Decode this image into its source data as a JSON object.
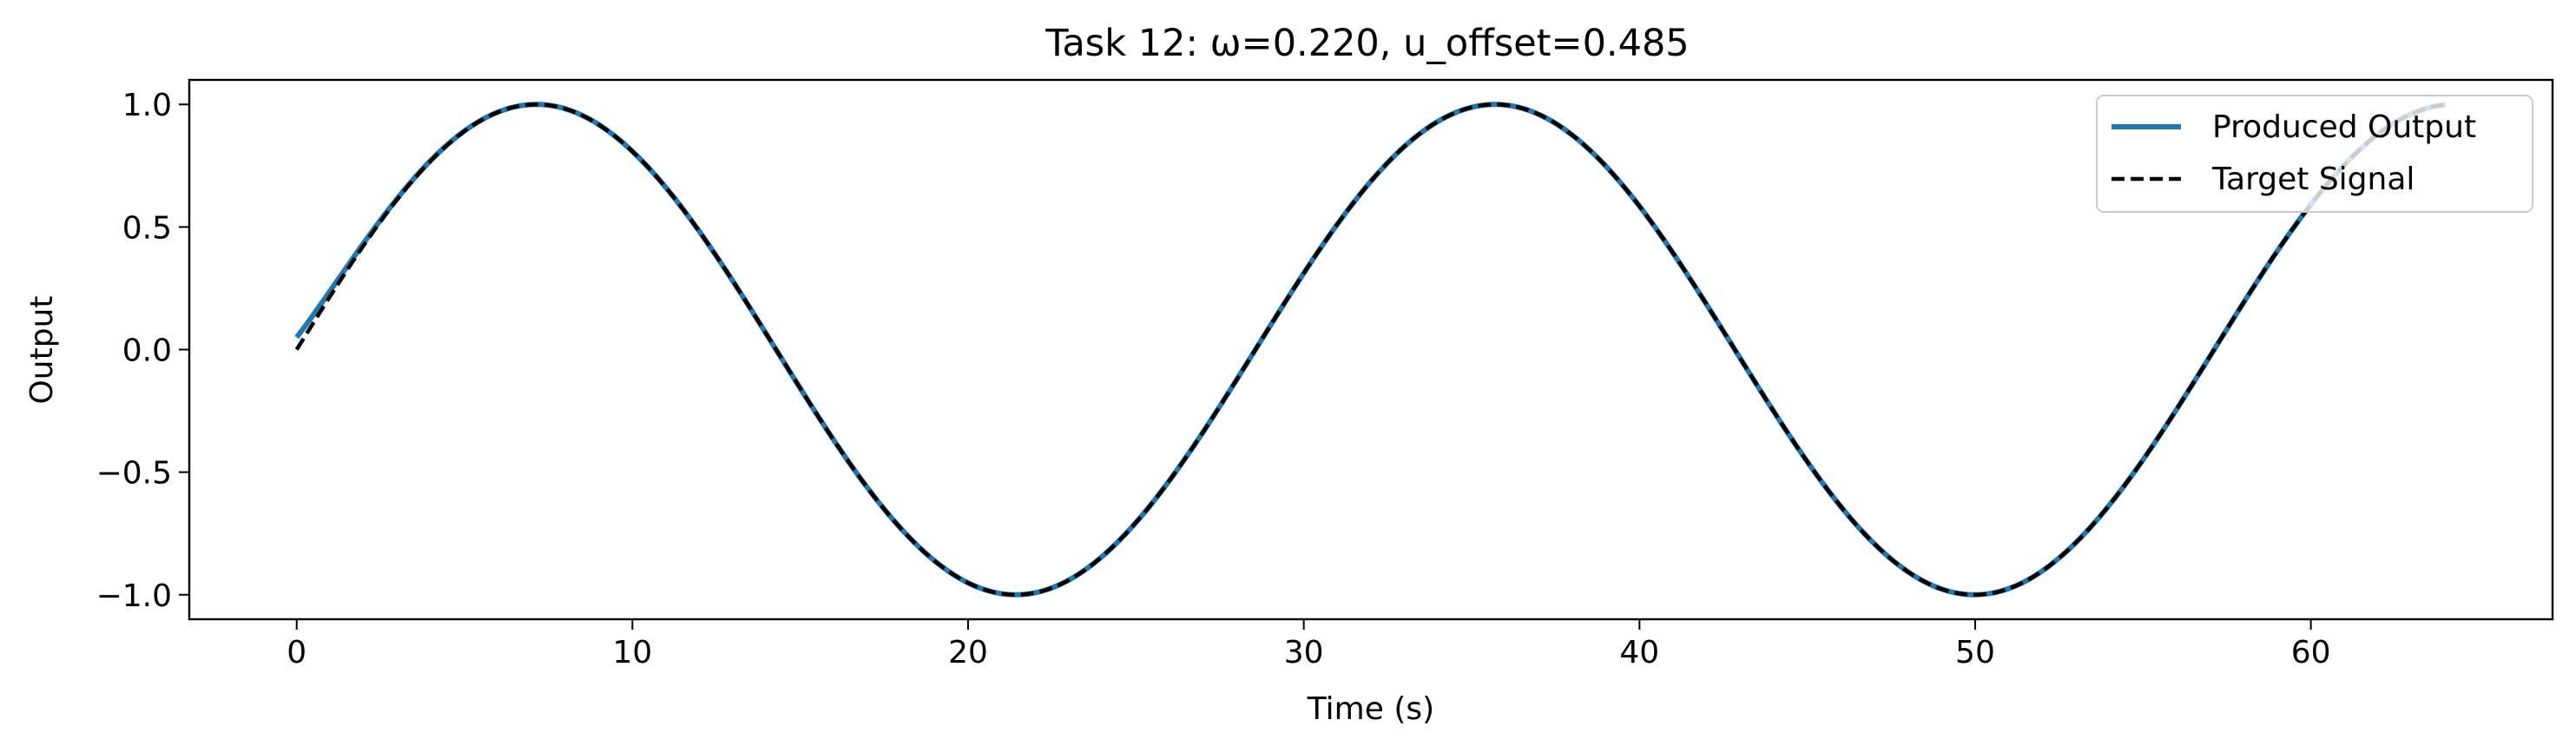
{
  "chart_data": {
    "type": "line",
    "title": "Task 12: ω=0.220, u_offset=0.485",
    "xlabel": "Time (s)",
    "ylabel": "Output",
    "xlim": [
      -3.2,
      67.2
    ],
    "ylim": [
      -1.1,
      1.1
    ],
    "xticks": [
      0,
      10,
      20,
      30,
      40,
      50,
      60
    ],
    "xtick_labels": [
      "0",
      "10",
      "20",
      "30",
      "40",
      "50",
      "60"
    ],
    "yticks": [
      1.0,
      0.5,
      0.0,
      -0.5,
      -1.0
    ],
    "ytick_labels": [
      "1.0",
      "0.5",
      "0.0",
      "−0.5",
      "−1.0"
    ],
    "grid": false,
    "legend_position": "top-right",
    "x_range": [
      0,
      64
    ],
    "series": [
      {
        "name": "Produced Output",
        "function": "sin(0.22*t)",
        "initial_value": 0.05,
        "color": "#1f77b4",
        "style": "solid"
      },
      {
        "name": "Target Signal",
        "function": "sin(0.22*t)",
        "initial_value": 0.0,
        "color": "#000000",
        "style": "dashed"
      }
    ]
  }
}
